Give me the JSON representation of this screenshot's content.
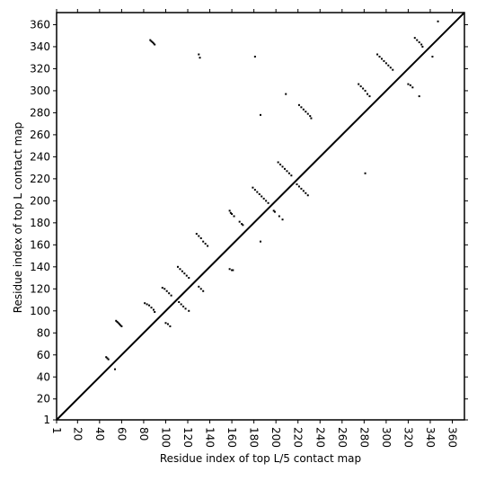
{
  "chart_data": {
    "type": "scatter",
    "xlabel": "Residue index of top L/5 contact map",
    "ylabel": "Residue index of top L contact map",
    "xlim": [
      1,
      371
    ],
    "ylim": [
      1,
      371
    ],
    "xticks": [
      1,
      20,
      40,
      60,
      80,
      100,
      120,
      140,
      160,
      180,
      200,
      220,
      240,
      260,
      280,
      300,
      320,
      340,
      360
    ],
    "yticks": [
      1,
      20,
      40,
      60,
      80,
      100,
      120,
      140,
      160,
      180,
      200,
      220,
      240,
      260,
      280,
      300,
      320,
      340,
      360
    ],
    "color": "#000000",
    "x": [
      86,
      87,
      88,
      89,
      90,
      130,
      131,
      181,
      186,
      55,
      56,
      57,
      58,
      59,
      60,
      46,
      47,
      48,
      54,
      81,
      83,
      85,
      87,
      89,
      90,
      97,
      99,
      101,
      103,
      105,
      111,
      113,
      115,
      117,
      119,
      121,
      128,
      130,
      132,
      134,
      136,
      138,
      158,
      159,
      160,
      162,
      167,
      169,
      170,
      179,
      181,
      183,
      185,
      187,
      189,
      191,
      193,
      198,
      199,
      203,
      206,
      202,
      204,
      206,
      208,
      210,
      212,
      214,
      221,
      223,
      225,
      227,
      229,
      231,
      232,
      275,
      277,
      279,
      281,
      283,
      285,
      292,
      294,
      296,
      298,
      300,
      302,
      304,
      306,
      320,
      322,
      324,
      326,
      328,
      330,
      332,
      333,
      342,
      347,
      100,
      102,
      104,
      112,
      114,
      116,
      118,
      121,
      130,
      132,
      134,
      158,
      160,
      161,
      186,
      209,
      281,
      330,
      219,
      221,
      223,
      225,
      227,
      229
    ],
    "y": [
      346,
      345,
      344,
      343,
      342,
      333,
      330,
      331,
      278,
      91,
      90,
      89,
      88,
      87,
      86,
      58,
      57,
      56,
      47,
      107,
      106,
      105,
      103,
      101,
      99,
      121,
      120,
      118,
      116,
      114,
      140,
      138,
      136,
      134,
      132,
      130,
      170,
      168,
      166,
      163,
      161,
      159,
      191,
      189,
      188,
      186,
      181,
      179,
      178,
      212,
      210,
      208,
      206,
      204,
      202,
      200,
      198,
      191,
      190,
      186,
      183,
      235,
      233,
      231,
      229,
      227,
      225,
      223,
      287,
      285,
      283,
      281,
      279,
      277,
      275,
      306,
      304,
      302,
      300,
      297,
      295,
      333,
      331,
      329,
      327,
      325,
      323,
      321,
      319,
      306,
      305,
      303,
      348,
      346,
      344,
      342,
      340,
      331,
      363,
      89,
      88,
      86,
      108,
      106,
      104,
      102,
      100,
      122,
      120,
      118,
      138,
      137,
      137,
      163,
      297,
      225,
      295,
      215,
      213,
      211,
      209,
      207,
      205
    ]
  }
}
